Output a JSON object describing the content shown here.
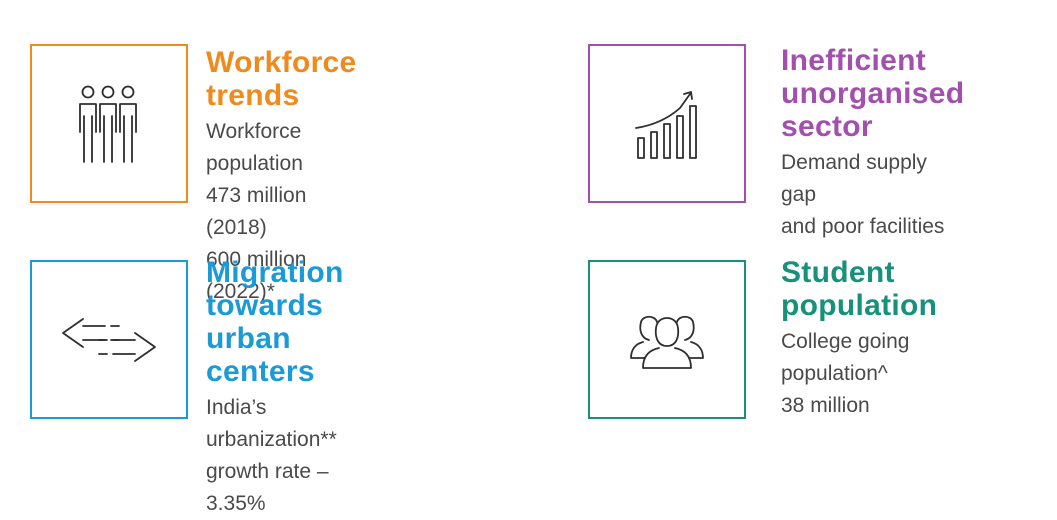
{
  "colors": {
    "workforce": "#F08A1C",
    "inefficient": "#A24FAE",
    "migration": "#1A9AD6",
    "student": "#17907C",
    "body_text": "#4a4a4a",
    "icon_stroke": "#2e2e2e"
  },
  "cards": {
    "workforce": {
      "icon": "people-group-icon",
      "title_lines": [
        "Workforce",
        "trends"
      ],
      "body_lines": [
        "Workforce population",
        "473 million (2018)",
        "600 million (2022)*"
      ]
    },
    "inefficient": {
      "icon": "growth-chart-icon",
      "title_lines": [
        "Inefficient",
        "unorganised",
        "sector"
      ],
      "body_lines": [
        "Demand supply gap",
        "and poor facilities"
      ]
    },
    "migration": {
      "icon": "bidirectional-arrows-icon",
      "title_lines": [
        "Migration",
        "towards",
        "urban centers"
      ],
      "body_lines": [
        "India’s urbanization**",
        "growth rate – 3.35%"
      ]
    },
    "student": {
      "icon": "users-group-icon",
      "title_lines": [
        "Student",
        "population"
      ],
      "body_lines": [
        "College going",
        "population^",
        "38 million"
      ]
    }
  }
}
